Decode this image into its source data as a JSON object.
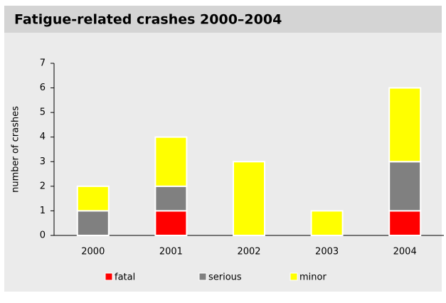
{
  "chart_data": {
    "type": "stacked_bar",
    "title": "Fatigue-related crashes 2000–2004",
    "y_label": "number of crashes",
    "categories": [
      "2000",
      "2001",
      "2002",
      "2003",
      "2004"
    ],
    "series": [
      {
        "name": "fatal",
        "color": "#ff0000",
        "values": [
          0,
          1,
          0,
          0,
          1
        ]
      },
      {
        "name": "serious",
        "color": "#808080",
        "values": [
          1,
          1,
          0,
          0,
          2
        ]
      },
      {
        "name": "minor",
        "color": "#ffff00",
        "values": [
          1,
          2,
          3,
          1,
          3
        ]
      }
    ],
    "ylim": [
      0,
      7
    ],
    "yticks": [
      0,
      1,
      2,
      3,
      4,
      5,
      6,
      7
    ],
    "grid": false,
    "legend": "bottom"
  }
}
